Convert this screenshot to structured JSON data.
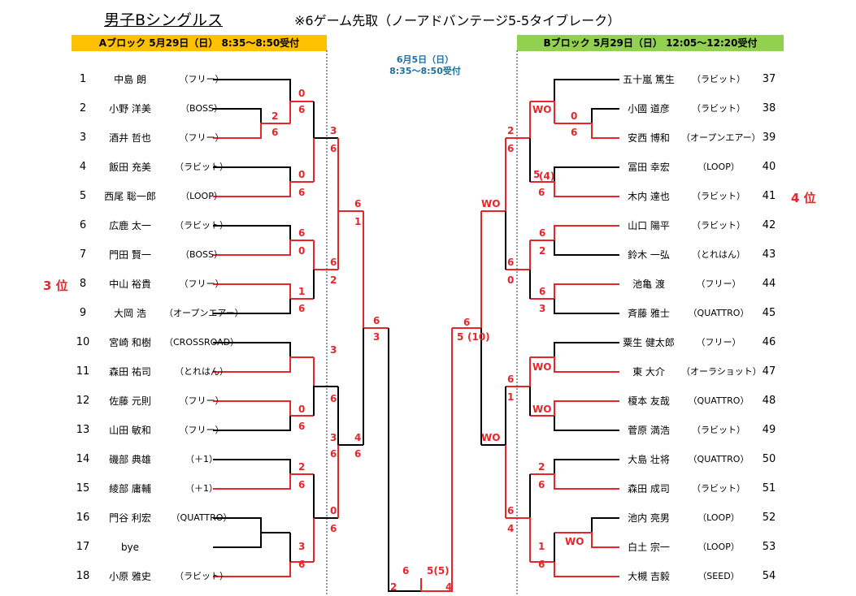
{
  "title": "男子Bシングルス",
  "rule": "※6ゲーム先取（ノーアドバンテージ5-5タイブレーク）",
  "block_a": {
    "header": "Aブロック  5月29日（日）  8:35～8:50受付"
  },
  "block_b": {
    "header": "Bブロック  5月29日（日）  12:05～12:20受付"
  },
  "final_date_1": "6月5日（日）",
  "final_date_2": "8:35～8:50受付",
  "rank_3": "3 位",
  "rank_4": "4 位",
  "colors": {
    "winner_line": "#E8262A",
    "header_a": "#FFC000",
    "header_b": "#92D050",
    "final_date": "#1F6E9E"
  },
  "players_a": [
    {
      "num": "1",
      "name": "中島 朗",
      "club": "（フリー）"
    },
    {
      "num": "2",
      "name": "小野 洋美",
      "club": "（BOSS）"
    },
    {
      "num": "3",
      "name": "酒井 哲也",
      "club": "（フリー）"
    },
    {
      "num": "4",
      "name": "飯田 充美",
      "club": "（ラビット）"
    },
    {
      "num": "5",
      "name": "西尾 聡一郎",
      "club": "（LOOP）"
    },
    {
      "num": "6",
      "name": "広鹿 太一",
      "club": "（ラビット）"
    },
    {
      "num": "7",
      "name": "門田 賢一",
      "club": "（BOSS）"
    },
    {
      "num": "8",
      "name": "中山 裕貴",
      "club": "（フリー）"
    },
    {
      "num": "9",
      "name": "大岡 浩",
      "club": "（オープンエアー）"
    },
    {
      "num": "10",
      "name": "宮崎 和樹",
      "club": "（CROSSROAD）"
    },
    {
      "num": "11",
      "name": "森田 祐司",
      "club": "（とれはん）"
    },
    {
      "num": "12",
      "name": "佐藤 元則",
      "club": "（フリー）"
    },
    {
      "num": "13",
      "name": "山田 敏和",
      "club": "（フリー）"
    },
    {
      "num": "14",
      "name": "磯部 典雄",
      "club": "（＋1）"
    },
    {
      "num": "15",
      "name": "綾部 庸輔",
      "club": "（＋1）"
    },
    {
      "num": "16",
      "name": "門谷 利宏",
      "club": "（QUATTRO）"
    },
    {
      "num": "17",
      "name": "bye",
      "club": ""
    },
    {
      "num": "18",
      "name": "小原 雅史",
      "club": "（ラビット）"
    }
  ],
  "players_b": [
    {
      "num": "37",
      "name": "五十嵐 篤生",
      "club": "（ラビット）"
    },
    {
      "num": "38",
      "name": "小國 道彦",
      "club": "（ラビット）"
    },
    {
      "num": "39",
      "name": "安西 博和",
      "club": "（オープンエアー）"
    },
    {
      "num": "40",
      "name": "冨田 幸宏",
      "club": "（LOOP）"
    },
    {
      "num": "41",
      "name": "木内 達也",
      "club": "（ラビット）"
    },
    {
      "num": "42",
      "name": "山口 陽平",
      "club": "（ラビット）"
    },
    {
      "num": "43",
      "name": "鈴木 一弘",
      "club": "（とれはん）"
    },
    {
      "num": "44",
      "name": "池亀 渡",
      "club": "（フリー）"
    },
    {
      "num": "45",
      "name": "斉藤 雅士",
      "club": "（QUATTRO）"
    },
    {
      "num": "46",
      "name": "粟生 健太郎",
      "club": "（フリー）"
    },
    {
      "num": "47",
      "name": "東 大介",
      "club": "（オーラショット）"
    },
    {
      "num": "48",
      "name": "榎本 友哉",
      "club": "（QUATTRO）"
    },
    {
      "num": "49",
      "name": "菅原 満浩",
      "club": "（ラビット）"
    },
    {
      "num": "50",
      "name": "大島 壮将",
      "club": "（QUATTRO）"
    },
    {
      "num": "51",
      "name": "森田 成司",
      "club": "（ラビット）"
    },
    {
      "num": "52",
      "name": "池内 亮男",
      "club": "（LOOP）"
    },
    {
      "num": "53",
      "name": "白土 宗一",
      "club": "（LOOP）"
    },
    {
      "num": "54",
      "name": "大槻 吉毅",
      "club": "（SEED）"
    }
  ],
  "scores_a": [
    "0",
    "6",
    "2",
    "6",
    "0",
    "6",
    "3",
    "6",
    "6",
    "0",
    "1",
    "6",
    "6",
    "2",
    "3",
    "6",
    "0",
    "6",
    "2",
    "6",
    "3",
    "6",
    "6",
    "1",
    "0",
    "6",
    "3",
    "6",
    "4",
    "6",
    "6",
    "3"
  ],
  "scores_b": [
    "WO",
    "0",
    "6",
    "5",
    "(4)",
    "6",
    "6",
    "2",
    "6",
    "3",
    "WO",
    "WO",
    "2",
    "6",
    "1",
    "6",
    "WO",
    "2",
    "6",
    "WO",
    "6",
    "0",
    "6",
    "1",
    "6",
    "4",
    "WO",
    "6",
    "5",
    "(10)"
  ],
  "scores_final": [
    "6",
    "5(5)",
    "2",
    "4"
  ]
}
